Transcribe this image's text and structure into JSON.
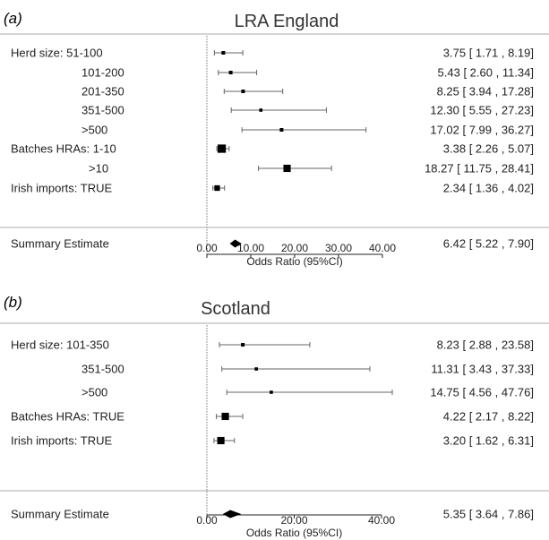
{
  "chart_data": [
    {
      "type": "forest",
      "panel_label": "(a)",
      "title": "LRA England",
      "xlabel": "Odds Ratio (95%CI)",
      "xlim": [
        0,
        40
      ],
      "xticks": [
        "0.00",
        "10.00",
        "20.00",
        "30.00",
        "40.00"
      ],
      "xtick_values": [
        0,
        10,
        20,
        30,
        40
      ],
      "rows": [
        {
          "label": "Herd size: 51-100",
          "or": 3.75,
          "lo": 1.71,
          "hi": 8.19,
          "ci_text": "3.75 [ 1.71 ,  8.19]",
          "weight": 0.2
        },
        {
          "label": "101-200",
          "or": 5.43,
          "lo": 2.6,
          "hi": 11.34,
          "ci_text": "5.43 [ 2.60 , 11.34]",
          "weight": 0.2
        },
        {
          "label": "201-350",
          "or": 8.25,
          "lo": 3.94,
          "hi": 17.28,
          "ci_text": "8.25 [ 3.94 , 17.28]",
          "weight": 0.2
        },
        {
          "label": "351-500",
          "or": 12.3,
          "lo": 5.55,
          "hi": 27.23,
          "ci_text": "12.30 [ 5.55 , 27.23]",
          "weight": 0.15
        },
        {
          "label": ">500",
          "or": 17.02,
          "lo": 7.99,
          "hi": 36.27,
          "ci_text": "17.02 [ 7.99 , 36.27]",
          "weight": 0.2
        },
        {
          "label": "Batches HRAs: 1-10",
          "or": 3.38,
          "lo": 2.26,
          "hi": 5.07,
          "ci_text": "3.38 [ 2.26 ,  5.07]",
          "weight": 0.9
        },
        {
          "label": ">10",
          "or": 18.27,
          "lo": 11.75,
          "hi": 28.41,
          "ci_text": "18.27 [ 11.75 , 28.41]",
          "weight": 0.75
        },
        {
          "label": "Irish imports: TRUE",
          "or": 2.34,
          "lo": 1.36,
          "hi": 4.02,
          "ci_text": "2.34 [ 1.36 ,  4.02]",
          "weight": 0.5
        }
      ],
      "summary": {
        "label": "Summary Estimate",
        "or": 6.42,
        "lo": 5.22,
        "hi": 7.9,
        "ci_text": "6.42 [ 5.22 ,  7.90]"
      }
    },
    {
      "type": "forest",
      "panel_label": "(b)",
      "title": "Scotland",
      "xlabel": "Odds Ratio (95%CI)",
      "xlim": [
        0,
        40
      ],
      "xticks": [
        "0.00",
        "20.00",
        "40.00"
      ],
      "xtick_values": [
        0,
        20,
        40
      ],
      "rows": [
        {
          "label": "Herd size: 101-350",
          "or": 8.23,
          "lo": 2.88,
          "hi": 23.58,
          "ci_text": "8.23 [ 2.88 , 23.58]",
          "weight": 0.2
        },
        {
          "label": "351-500",
          "or": 11.31,
          "lo": 3.43,
          "hi": 37.33,
          "ci_text": "11.31 [ 3.43 , 37.33]",
          "weight": 0.15
        },
        {
          "label": ">500",
          "or": 14.75,
          "lo": 4.56,
          "hi": 47.76,
          "ci_text": "14.75 [ 4.56 , 47.76]",
          "weight": 0.15
        },
        {
          "label": "Batches HRAs: TRUE",
          "or": 4.22,
          "lo": 2.17,
          "hi": 8.22,
          "ci_text": "4.22 [ 2.17 ,  8.22]",
          "weight": 0.75
        },
        {
          "label": "Irish imports: TRUE",
          "or": 3.2,
          "lo": 1.62,
          "hi": 6.31,
          "ci_text": "3.20 [ 1.62 ,  6.31]",
          "weight": 0.75
        }
      ],
      "summary": {
        "label": "Summary Estimate",
        "or": 5.35,
        "lo": 3.64,
        "hi": 7.86,
        "ci_text": "5.35 [ 3.64 ,  7.86]"
      }
    }
  ]
}
